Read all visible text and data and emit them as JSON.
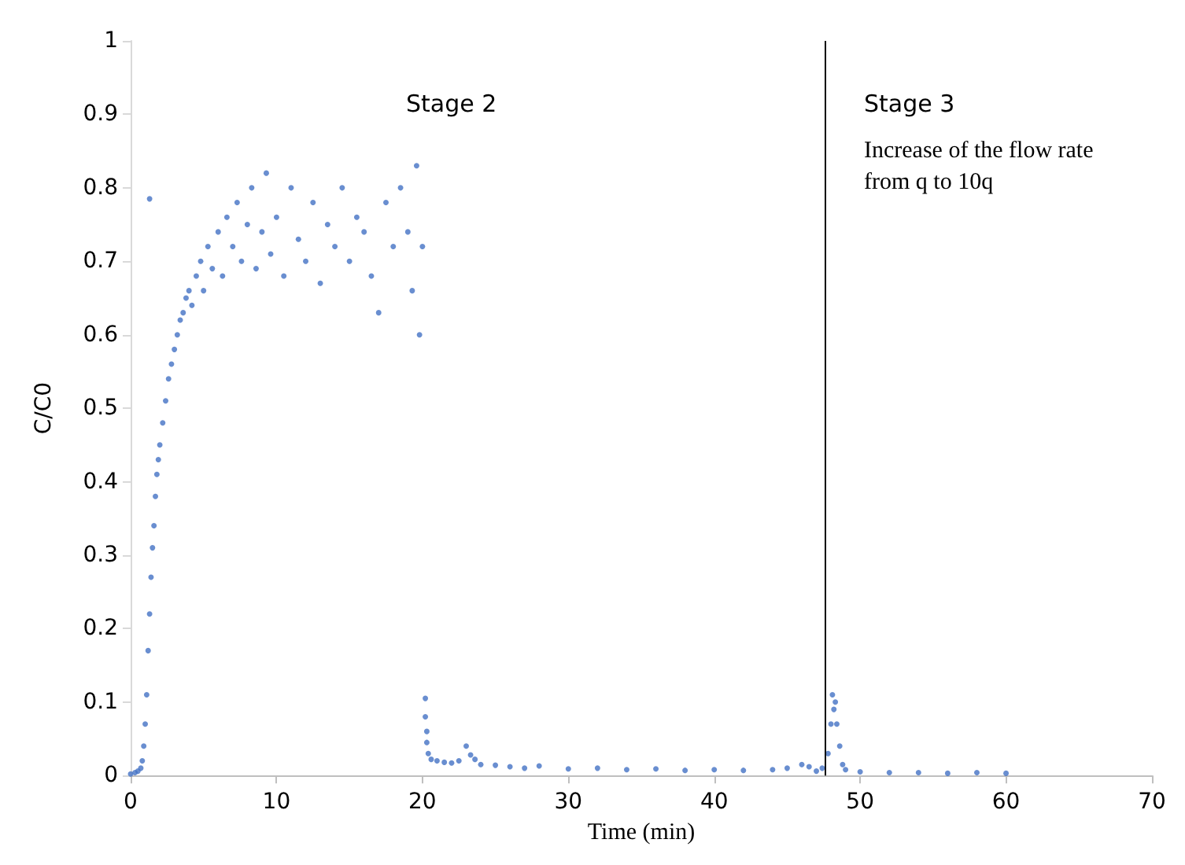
{
  "chart_data": {
    "type": "scatter",
    "xlabel": "Time (min)",
    "ylabel": "C/C0",
    "xlim": [
      0,
      70
    ],
    "xticks": [
      0,
      10,
      20,
      30,
      40,
      50,
      60,
      70
    ],
    "ylim": [
      0,
      1
    ],
    "yticks": [
      0,
      0.1,
      0.2,
      0.3,
      0.4,
      0.5,
      0.6,
      0.7,
      0.8,
      0.9,
      1
    ],
    "grid": false,
    "marker": "circle",
    "annotations": [
      "Stage 2",
      "Stage 3",
      "Increase of the flow rate from q to 10q"
    ],
    "ref_lines": [
      {
        "axis": "x",
        "value": 47.6,
        "color": "#000000"
      }
    ],
    "series": [
      {
        "color": "#4472c4",
        "x": [
          0,
          0.3,
          0.5,
          0.7,
          0.8,
          0.9,
          1.0,
          1.1,
          1.2,
          1.3,
          1.3,
          1.4,
          1.5,
          1.6,
          1.7,
          1.8,
          1.9,
          2.0,
          2.2,
          2.4,
          2.6,
          2.8,
          3.0,
          3.2,
          3.4,
          3.6,
          3.8,
          4.0,
          4.2,
          4.5,
          4.8,
          5.0,
          5.3,
          5.6,
          6.0,
          6.3,
          6.6,
          7.0,
          7.3,
          7.6,
          8.0,
          8.3,
          8.6,
          9.0,
          9.3,
          9.6,
          10,
          10.5,
          11,
          11.5,
          12,
          12.5,
          13,
          13.5,
          14,
          14.5,
          15,
          15.5,
          16,
          16.5,
          17,
          17.5,
          18,
          18.5,
          19,
          19.3,
          19.6,
          19.8,
          20,
          20.2,
          20.2,
          20.3,
          20.3,
          20.4,
          20.6,
          21,
          21.5,
          22,
          22.5,
          23,
          23.3,
          23.6,
          24,
          25,
          26,
          27,
          28,
          30,
          32,
          34,
          36,
          38,
          40,
          42,
          44,
          45,
          46,
          46.5,
          47,
          47.4,
          47.8,
          48,
          48.1,
          48.2,
          48.3,
          48.4,
          48.6,
          48.8,
          49,
          50,
          52,
          54,
          56,
          58,
          60
        ],
        "values": [
          0.002,
          0.004,
          0.006,
          0.01,
          0.02,
          0.04,
          0.07,
          0.11,
          0.17,
          0.22,
          0.785,
          0.27,
          0.31,
          0.34,
          0.38,
          0.41,
          0.43,
          0.45,
          0.48,
          0.51,
          0.54,
          0.56,
          0.58,
          0.6,
          0.62,
          0.63,
          0.65,
          0.66,
          0.64,
          0.68,
          0.7,
          0.66,
          0.72,
          0.69,
          0.74,
          0.68,
          0.76,
          0.72,
          0.78,
          0.7,
          0.75,
          0.8,
          0.69,
          0.74,
          0.82,
          0.71,
          0.76,
          0.68,
          0.8,
          0.73,
          0.7,
          0.78,
          0.67,
          0.75,
          0.72,
          0.8,
          0.7,
          0.76,
          0.74,
          0.68,
          0.63,
          0.78,
          0.72,
          0.8,
          0.74,
          0.66,
          0.83,
          0.6,
          0.72,
          0.105,
          0.08,
          0.06,
          0.045,
          0.03,
          0.022,
          0.02,
          0.018,
          0.017,
          0.02,
          0.04,
          0.028,
          0.022,
          0.015,
          0.014,
          0.012,
          0.01,
          0.013,
          0.009,
          0.01,
          0.008,
          0.009,
          0.007,
          0.008,
          0.007,
          0.008,
          0.01,
          0.015,
          0.012,
          0.006,
          0.01,
          0.03,
          0.07,
          0.11,
          0.09,
          0.1,
          0.07,
          0.04,
          0.015,
          0.008,
          0.005,
          0.004,
          0.004,
          0.003,
          0.004,
          0.003
        ]
      }
    ]
  }
}
